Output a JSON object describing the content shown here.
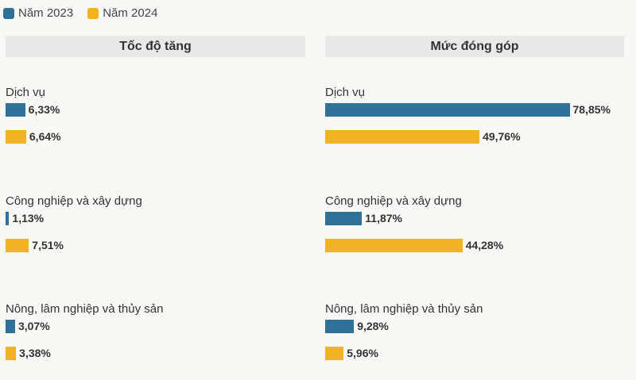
{
  "legend": {
    "items": [
      {
        "label": "Năm 2023",
        "color": "#2f7299"
      },
      {
        "label": "Năm 2024",
        "color": "#f0b323"
      }
    ]
  },
  "chart_data": [
    {
      "type": "bar",
      "orientation": "horizontal",
      "title": "Tốc độ tăng",
      "categories": [
        "Dịch vụ",
        "Công nghiệp và xây dựng",
        "Nông, lâm nghiệp và thủy sản"
      ],
      "series": [
        {
          "name": "Năm 2023",
          "color": "#2f7299",
          "values": [
            6.33,
            1.13,
            3.07
          ],
          "labels": [
            "6,33%",
            "1,13%",
            "3,07%"
          ]
        },
        {
          "name": "Năm 2024",
          "color": "#f0b323",
          "values": [
            6.64,
            7.51,
            3.38
          ],
          "labels": [
            "6,64%",
            "7,51%",
            "3,38%"
          ]
        }
      ],
      "xlim": [
        0,
        100
      ]
    },
    {
      "type": "bar",
      "orientation": "horizontal",
      "title": "Mức đóng góp",
      "categories": [
        "Dịch vụ",
        "Công nghiệp và xây dựng",
        "Nông, lâm nghiệp và thủy sản"
      ],
      "series": [
        {
          "name": "Năm 2023",
          "color": "#2f7299",
          "values": [
            78.85,
            11.87,
            9.28
          ],
          "labels": [
            "78,85%",
            "11,87%",
            "9,28%"
          ]
        },
        {
          "name": "Năm 2024",
          "color": "#f0b323",
          "values": [
            49.76,
            44.28,
            5.96
          ],
          "labels": [
            "49,76%",
            "44,28%",
            "5,96%"
          ]
        }
      ],
      "xlim": [
        0,
        100
      ]
    }
  ]
}
